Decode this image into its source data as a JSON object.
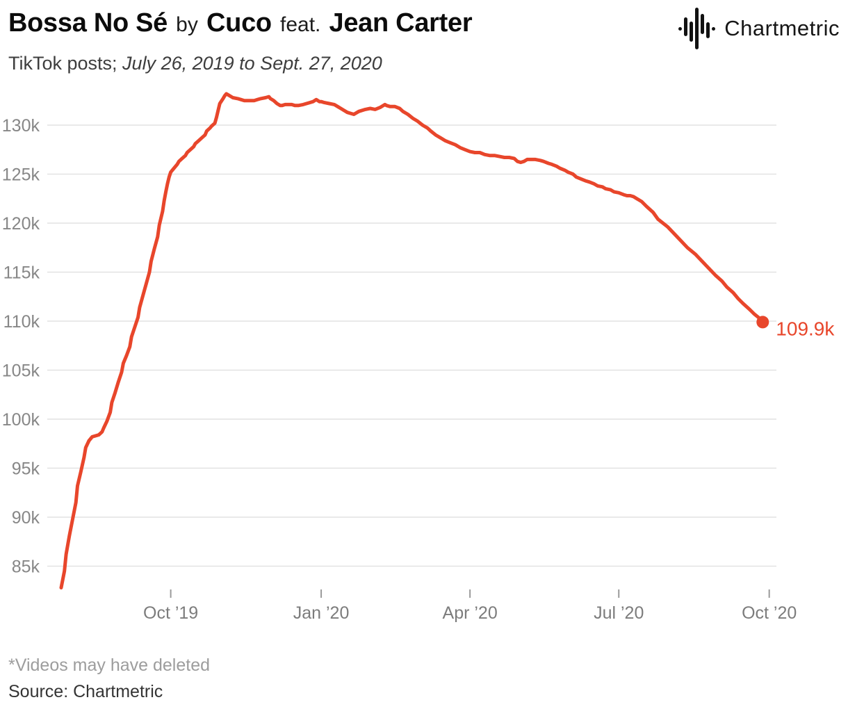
{
  "header": {
    "song": "Bossa No Sé",
    "by_label": "by",
    "artist": "Cuco",
    "feat_label": "feat.",
    "featured_artist": "Jean Carter",
    "subtitle_prefix": "TikTok posts; ",
    "subtitle_dates": "July 26, 2019 to Sept. 27, 2020",
    "brand": "Chartmetric",
    "brand_icon": "waveform-icon"
  },
  "footer": {
    "note": "*Videos may have deleted",
    "source": "Source: Chartmetric"
  },
  "chart_data": {
    "type": "line",
    "title": "Bossa No Sé by Cuco feat. Jean Carter",
    "subtitle": "TikTok posts; July 26, 2019 to Sept. 27, 2020",
    "ylabel": "TikTok posts",
    "unit": "thousands of posts",
    "x_unit": "days since July 26, 2019",
    "x_range_days": [
      0,
      429
    ],
    "ylim_thousands": [
      82,
      134.5
    ],
    "grid": "horizontal",
    "legend": "none",
    "line_color": "#e8462b",
    "grid_color": "#e2e2e2",
    "end_label": "109.9k",
    "end_value_thousands": 109.9,
    "start_value_thousands": 82.8,
    "peak_value_thousands": 133.2,
    "y_ticks": [
      {
        "value": 130,
        "label": "130k"
      },
      {
        "value": 125,
        "label": "125k"
      },
      {
        "value": 120,
        "label": "120k"
      },
      {
        "value": 115,
        "label": "115k"
      },
      {
        "value": 110,
        "label": "110k"
      },
      {
        "value": 105,
        "label": "105k"
      },
      {
        "value": 100,
        "label": "100k"
      },
      {
        "value": 95,
        "label": "95k"
      },
      {
        "value": 90,
        "label": "90k"
      },
      {
        "value": 85,
        "label": "85k"
      }
    ],
    "x_ticks": [
      {
        "day": 67,
        "label": "Oct ’19"
      },
      {
        "day": 159,
        "label": "Jan ’20"
      },
      {
        "day": 250,
        "label": "Apr ’20"
      },
      {
        "day": 341,
        "label": "Jul ’20"
      },
      {
        "day": 433,
        "label": "Oct ’20"
      }
    ],
    "series": [
      {
        "name": "TikTok posts",
        "points": [
          [
            0,
            82.8
          ],
          [
            2,
            84.5
          ],
          [
            3,
            86.2
          ],
          [
            5,
            88.1
          ],
          [
            7,
            89.8
          ],
          [
            9,
            91.5
          ],
          [
            10,
            93.2
          ],
          [
            12,
            94.6
          ],
          [
            14,
            96.1
          ],
          [
            15,
            97.1
          ],
          [
            17,
            97.8
          ],
          [
            19,
            98.2
          ],
          [
            21,
            98.3
          ],
          [
            23,
            98.4
          ],
          [
            25,
            98.7
          ],
          [
            26,
            99.1
          ],
          [
            28,
            99.8
          ],
          [
            30,
            100.7
          ],
          [
            31,
            101.7
          ],
          [
            33,
            102.7
          ],
          [
            35,
            103.8
          ],
          [
            37,
            104.8
          ],
          [
            38,
            105.7
          ],
          [
            40,
            106.5
          ],
          [
            42,
            107.4
          ],
          [
            43,
            108.4
          ],
          [
            45,
            109.4
          ],
          [
            47,
            110.4
          ],
          [
            48,
            111.4
          ],
          [
            50,
            112.6
          ],
          [
            52,
            113.8
          ],
          [
            54,
            115.0
          ],
          [
            55,
            116.1
          ],
          [
            57,
            117.4
          ],
          [
            59,
            118.6
          ],
          [
            60,
            119.8
          ],
          [
            62,
            121.2
          ],
          [
            63,
            122.3
          ],
          [
            64,
            123.2
          ],
          [
            65,
            124.0
          ],
          [
            66,
            124.7
          ],
          [
            67,
            125.2
          ],
          [
            69,
            125.6
          ],
          [
            71,
            126.0
          ],
          [
            72,
            126.3
          ],
          [
            74,
            126.6
          ],
          [
            76,
            126.9
          ],
          [
            77,
            127.2
          ],
          [
            79,
            127.5
          ],
          [
            81,
            127.8
          ],
          [
            82,
            128.1
          ],
          [
            84,
            128.4
          ],
          [
            86,
            128.7
          ],
          [
            88,
            129.0
          ],
          [
            89,
            129.4
          ],
          [
            91,
            129.7
          ],
          [
            92,
            129.9
          ],
          [
            94,
            130.2
          ],
          [
            95,
            130.8
          ],
          [
            96,
            131.5
          ],
          [
            97,
            132.2
          ],
          [
            99,
            132.7
          ],
          [
            100,
            133.0
          ],
          [
            101,
            133.2
          ],
          [
            102,
            133.1
          ],
          [
            104,
            132.9
          ],
          [
            105,
            132.8
          ],
          [
            108,
            132.7
          ],
          [
            110,
            132.6
          ],
          [
            112,
            132.5
          ],
          [
            114,
            132.5
          ],
          [
            116,
            132.5
          ],
          [
            118,
            132.5
          ],
          [
            120,
            132.6
          ],
          [
            122,
            132.7
          ],
          [
            125,
            132.8
          ],
          [
            127,
            132.9
          ],
          [
            128,
            132.7
          ],
          [
            130,
            132.5
          ],
          [
            132,
            132.2
          ],
          [
            134,
            132.0
          ],
          [
            135,
            132.0
          ],
          [
            137,
            132.1
          ],
          [
            139,
            132.1
          ],
          [
            141,
            132.1
          ],
          [
            143,
            132.0
          ],
          [
            145,
            132.0
          ],
          [
            148,
            132.1
          ],
          [
            150,
            132.2
          ],
          [
            152,
            132.3
          ],
          [
            154,
            132.4
          ],
          [
            156,
            132.6
          ],
          [
            158,
            132.4
          ],
          [
            159,
            132.4
          ],
          [
            161,
            132.3
          ],
          [
            164,
            132.2
          ],
          [
            167,
            132.1
          ],
          [
            169,
            131.9
          ],
          [
            171,
            131.7
          ],
          [
            173,
            131.5
          ],
          [
            175,
            131.3
          ],
          [
            177,
            131.2
          ],
          [
            179,
            131.1
          ],
          [
            182,
            131.4
          ],
          [
            186,
            131.6
          ],
          [
            189,
            131.7
          ],
          [
            192,
            131.6
          ],
          [
            195,
            131.8
          ],
          [
            198,
            132.1
          ],
          [
            199,
            132.0
          ],
          [
            201,
            131.9
          ],
          [
            204,
            131.9
          ],
          [
            207,
            131.7
          ],
          [
            209,
            131.4
          ],
          [
            212,
            131.1
          ],
          [
            215,
            130.7
          ],
          [
            218,
            130.4
          ],
          [
            221,
            130.0
          ],
          [
            224,
            129.7
          ],
          [
            226,
            129.4
          ],
          [
            229,
            129.0
          ],
          [
            232,
            128.7
          ],
          [
            235,
            128.4
          ],
          [
            238,
            128.2
          ],
          [
            241,
            128.0
          ],
          [
            244,
            127.7
          ],
          [
            247,
            127.5
          ],
          [
            250,
            127.3
          ],
          [
            253,
            127.2
          ],
          [
            256,
            127.2
          ],
          [
            259,
            127.0
          ],
          [
            262,
            126.9
          ],
          [
            265,
            126.9
          ],
          [
            268,
            126.8
          ],
          [
            271,
            126.7
          ],
          [
            274,
            126.7
          ],
          [
            277,
            126.6
          ],
          [
            279,
            126.3
          ],
          [
            281,
            126.2
          ],
          [
            283,
            126.3
          ],
          [
            285,
            126.5
          ],
          [
            288,
            126.5
          ],
          [
            290,
            126.5
          ],
          [
            293,
            126.4
          ],
          [
            295,
            126.3
          ],
          [
            298,
            126.1
          ],
          [
            300,
            126.0
          ],
          [
            303,
            125.8
          ],
          [
            305,
            125.6
          ],
          [
            308,
            125.4
          ],
          [
            310,
            125.2
          ],
          [
            313,
            125.0
          ],
          [
            315,
            124.7
          ],
          [
            318,
            124.5
          ],
          [
            321,
            124.3
          ],
          [
            323,
            124.2
          ],
          [
            326,
            124.0
          ],
          [
            328,
            123.8
          ],
          [
            331,
            123.7
          ],
          [
            333,
            123.5
          ],
          [
            336,
            123.4
          ],
          [
            338,
            123.2
          ],
          [
            341,
            123.1
          ],
          [
            344,
            122.9
          ],
          [
            346,
            122.8
          ],
          [
            348,
            122.8
          ],
          [
            350,
            122.7
          ],
          [
            352,
            122.5
          ],
          [
            355,
            122.2
          ],
          [
            358,
            121.7
          ],
          [
            362,
            121.1
          ],
          [
            365,
            120.4
          ],
          [
            368,
            120.0
          ],
          [
            371,
            119.6
          ],
          [
            375,
            118.9
          ],
          [
            379,
            118.2
          ],
          [
            383,
            117.5
          ],
          [
            388,
            116.8
          ],
          [
            392,
            116.1
          ],
          [
            396,
            115.4
          ],
          [
            400,
            114.7
          ],
          [
            404,
            114.1
          ],
          [
            407,
            113.5
          ],
          [
            411,
            112.9
          ],
          [
            414,
            112.3
          ],
          [
            417,
            111.8
          ],
          [
            421,
            111.2
          ],
          [
            424,
            110.7
          ],
          [
            427,
            110.3
          ],
          [
            429,
            109.9
          ]
        ]
      }
    ]
  }
}
